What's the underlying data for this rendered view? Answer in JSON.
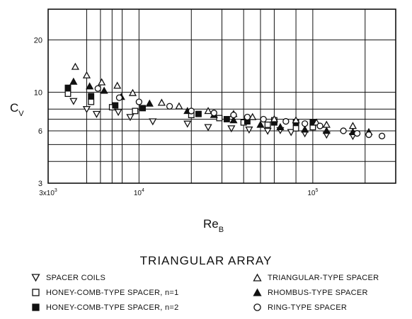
{
  "chart_data": {
    "type": "scatter",
    "title": "TRIANGULAR ARRAY",
    "xlabel": "Re_B",
    "ylabel": "C_V",
    "xscale": "log",
    "yscale": "log",
    "xlim": [
      3000,
      300000
    ],
    "ylim": [
      3,
      30
    ],
    "grid": true,
    "x_tick_labels": [
      {
        "value": 3000,
        "base": "3x10",
        "exp": "3"
      },
      {
        "value": 10000,
        "base": "10",
        "exp": "4"
      },
      {
        "value": 100000,
        "base": "10",
        "exp": "5"
      }
    ],
    "y_tick_labels": [
      {
        "value": 3,
        "label": "3"
      },
      {
        "value": 6,
        "label": "6"
      },
      {
        "value": 10,
        "label": "10"
      },
      {
        "value": 20,
        "label": "20"
      }
    ],
    "series": [
      {
        "name": "SPACER COILS",
        "marker": "triangle-down-open",
        "points": [
          [
            4200,
            8.9
          ],
          [
            5000,
            8.0
          ],
          [
            5700,
            7.5
          ],
          [
            7600,
            7.7
          ],
          [
            8900,
            7.2
          ],
          [
            12000,
            6.8
          ],
          [
            19000,
            6.6
          ],
          [
            25000,
            6.3
          ],
          [
            34000,
            6.2
          ],
          [
            43000,
            6.1
          ],
          [
            55000,
            6.0
          ],
          [
            65000,
            6.05
          ],
          [
            75000,
            5.9
          ],
          [
            90000,
            5.8
          ],
          [
            120000,
            5.7
          ],
          [
            170000,
            5.6
          ]
        ]
      },
      {
        "name": "HONEY-COMB-TYPE SPACER, n=1",
        "marker": "square-open",
        "points": [
          [
            3900,
            9.8
          ],
          [
            5300,
            8.8
          ],
          [
            7000,
            8.2
          ],
          [
            9500,
            7.8
          ],
          [
            20000,
            7.4
          ],
          [
            29000,
            7.1
          ],
          [
            40000,
            6.7
          ],
          [
            55000,
            6.5
          ],
          [
            60000,
            6.9
          ],
          [
            80000,
            6.2
          ],
          [
            100000,
            6.3
          ]
        ]
      },
      {
        "name": "HONEY-COMB-TYPE SPACER, n=2",
        "marker": "square-filled",
        "points": [
          [
            3900,
            10.6
          ],
          [
            5300,
            9.5
          ],
          [
            7300,
            8.4
          ],
          [
            10500,
            8.1
          ],
          [
            22000,
            7.5
          ],
          [
            32000,
            7.0
          ],
          [
            42000,
            6.8
          ],
          [
            60000,
            6.7
          ],
          [
            80000,
            6.7
          ],
          [
            100000,
            6.7
          ]
        ]
      },
      {
        "name": "TRIANGULAR-TYPE SPACER",
        "marker": "triangle-up-open",
        "points": [
          [
            4300,
            14.0
          ],
          [
            5000,
            12.5
          ],
          [
            6100,
            11.4
          ],
          [
            7500,
            10.9
          ],
          [
            9200,
            9.9
          ],
          [
            13500,
            8.7
          ],
          [
            17000,
            8.3
          ],
          [
            25000,
            7.8
          ],
          [
            35000,
            7.5
          ],
          [
            45000,
            7.2
          ],
          [
            60000,
            7.0
          ],
          [
            80000,
            6.9
          ],
          [
            105000,
            6.7
          ],
          [
            120000,
            6.5
          ],
          [
            170000,
            6.4
          ]
        ]
      },
      {
        "name": "RHOMBUS-TYPE SPACER",
        "marker": "triangle-up-filled",
        "points": [
          [
            4200,
            11.5
          ],
          [
            5200,
            10.8
          ],
          [
            6300,
            10.2
          ],
          [
            7900,
            9.4
          ],
          [
            11500,
            8.6
          ],
          [
            19000,
            7.8
          ],
          [
            27000,
            7.4
          ],
          [
            35000,
            6.9
          ],
          [
            50000,
            6.5
          ],
          [
            65000,
            6.3
          ],
          [
            90000,
            6.1
          ],
          [
            120000,
            6.0
          ],
          [
            170000,
            5.9
          ],
          [
            210000,
            5.9
          ]
        ]
      },
      {
        "name": "RING-TYPE SPACER",
        "marker": "circle-open",
        "points": [
          [
            5800,
            10.5
          ],
          [
            7700,
            9.3
          ],
          [
            10000,
            8.8
          ],
          [
            15000,
            8.3
          ],
          [
            20000,
            7.8
          ],
          [
            27000,
            7.6
          ],
          [
            35000,
            7.4
          ],
          [
            42000,
            7.2
          ],
          [
            52000,
            7.0
          ],
          [
            70000,
            6.8
          ],
          [
            90000,
            6.6
          ],
          [
            110000,
            6.4
          ],
          [
            150000,
            6.0
          ],
          [
            180000,
            5.8
          ],
          [
            210000,
            5.7
          ],
          [
            250000,
            5.6
          ]
        ]
      }
    ]
  }
}
